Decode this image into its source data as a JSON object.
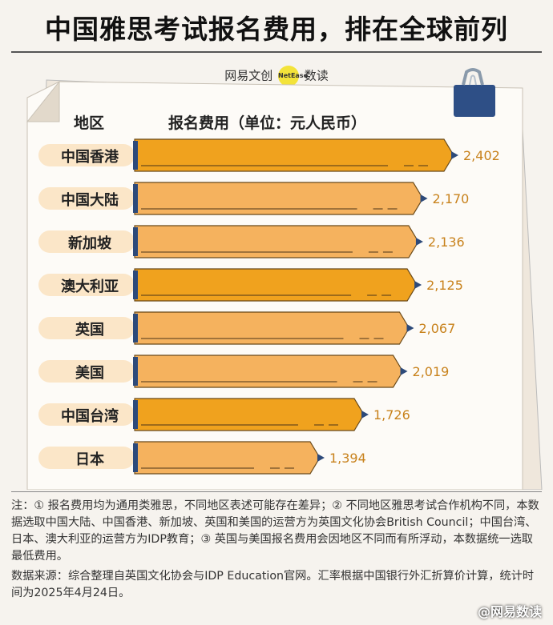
{
  "title": "中国雅思考试报名费用，排在全球前列",
  "brand": {
    "left": "网易文创",
    "badge": "NetEase",
    "right": "数读"
  },
  "colors": {
    "highlight": "#f0a21e",
    "bar": "#f5b25e",
    "cap": "#2d4a7a",
    "value": "#c8821c",
    "pill": "#fbe6c8"
  },
  "chart_data": {
    "type": "bar",
    "orientation": "horizontal",
    "category_header": "地区",
    "value_header": "报名费用（单位：元人民币）",
    "categories": [
      "中国香港",
      "中国大陆",
      "新加坡",
      "澳大利亚",
      "英国",
      "美国",
      "中国台湾",
      "日本"
    ],
    "values": [
      2402,
      2170,
      2136,
      2125,
      2067,
      2019,
      1726,
      1394
    ],
    "value_labels": [
      "2,402",
      "2,170",
      "2,136",
      "2,125",
      "2,067",
      "2,019",
      "1,726",
      "1,394"
    ],
    "highlight_indices": [
      0,
      3,
      6
    ],
    "xlim": [
      0,
      2402
    ]
  },
  "notes": "注：① 报名费用均为通用类雅思，不同地区表述可能存在差异；② 不同地区雅思考试合作机构不同，本数据选取中国大陆、中国香港、新加坡、英国和美国的运营方为英国文化协会British Council；中国台湾、日本、澳大利亚的运营方为IDP教育；③ 英国与美国报名费用会因地区不同而有所浮动，本数据统一选取最低费用。",
  "source": "数据来源：综合整理自英国文化协会与IDP Education官网。汇率根据中国银行外汇折算价计算，统计时间为2025年4月24日。",
  "watermark": "@网易数读"
}
